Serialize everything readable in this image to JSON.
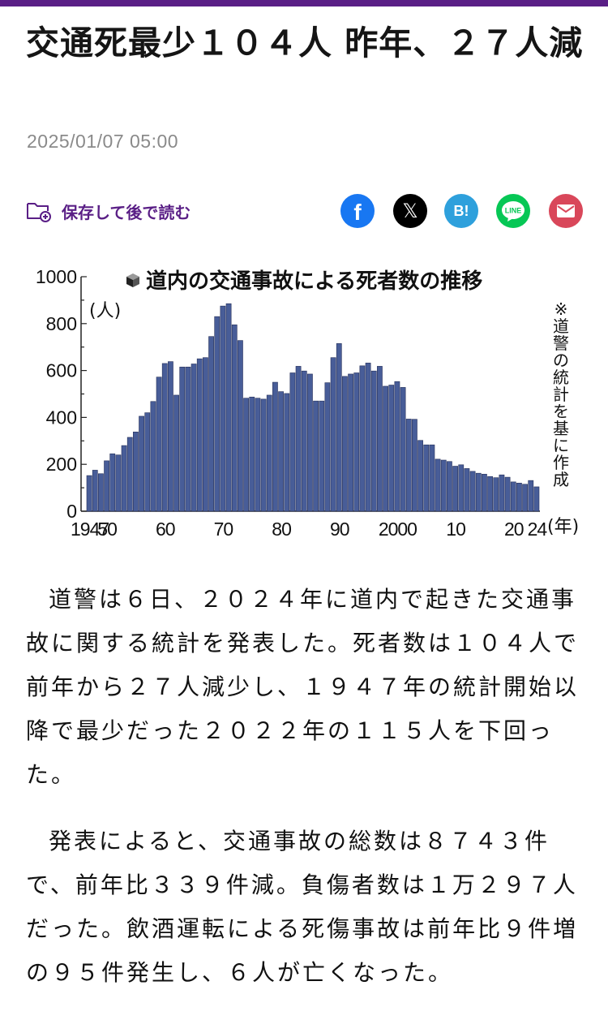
{
  "article": {
    "title": "交通死最少１０４人 昨年、２７人減",
    "date": "2025/01/07 05:00",
    "save_label": "保存して後で読む",
    "paragraphs": [
      "道警は６日、２０２４年に道内で起きた交通事故に関する統計を発表した。死者数は１０４人で前年から２７人減少し、１９４７年の統計開始以降で最少だった２０２２年の１１５人を下回った。",
      "発表によると、交通事故の総数は８７４３件で、前年比３３９件減。負傷者数は１万２９７人だった。飲酒運転による死傷事故は前年比９件増の９５件発生し、６人が亡くなった。"
    ]
  },
  "share": {
    "facebook_glyph": "f",
    "x_glyph": "𝕏",
    "hatena_glyph": "B!",
    "line_glyph": "LINE",
    "facebook_color": "#1877f2",
    "x_color": "#000000",
    "hatena_color": "#2ea0dc",
    "line_color": "#06c755",
    "mail_color": "#d9475a"
  },
  "chart_data": {
    "type": "bar",
    "title": "道内の交通事故による死者数の推移",
    "ylabel": "(人)",
    "xlabel": "(年)",
    "note": "※道警の統計を基に作成",
    "ylim": [
      0,
      1000
    ],
    "yticks": [
      0,
      200,
      400,
      600,
      800,
      1000
    ],
    "xtick_values": [
      1947,
      1950,
      1960,
      1970,
      1980,
      1990,
      2000,
      2010,
      2020,
      2024
    ],
    "xtick_labels": [
      "1947",
      "50",
      "60",
      "70",
      "80",
      "90",
      "2000",
      "10",
      "20",
      "24"
    ],
    "bar_color": "#485d98",
    "bar_edge_color": "#27315a",
    "x": [
      1947,
      1948,
      1949,
      1950,
      1951,
      1952,
      1953,
      1954,
      1955,
      1956,
      1957,
      1958,
      1959,
      1960,
      1961,
      1962,
      1963,
      1964,
      1965,
      1966,
      1967,
      1968,
      1969,
      1970,
      1971,
      1972,
      1973,
      1974,
      1975,
      1976,
      1977,
      1978,
      1979,
      1980,
      1981,
      1982,
      1983,
      1984,
      1985,
      1986,
      1987,
      1988,
      1989,
      1990,
      1991,
      1992,
      1993,
      1994,
      1995,
      1996,
      1997,
      1998,
      1999,
      2000,
      2001,
      2002,
      2003,
      2004,
      2005,
      2006,
      2007,
      2008,
      2009,
      2010,
      2011,
      2012,
      2013,
      2014,
      2015,
      2016,
      2017,
      2018,
      2019,
      2020,
      2021,
      2022,
      2023,
      2024
    ],
    "values": [
      152,
      175,
      160,
      215,
      245,
      240,
      280,
      315,
      338,
      405,
      420,
      468,
      572,
      630,
      638,
      495,
      615,
      615,
      628,
      650,
      655,
      745,
      830,
      875,
      885,
      795,
      728,
      482,
      487,
      482,
      478,
      495,
      550,
      510,
      502,
      590,
      618,
      598,
      585,
      470,
      470,
      548,
      655,
      715,
      575,
      585,
      590,
      620,
      632,
      598,
      618,
      533,
      538,
      553,
      528,
      393,
      392,
      302,
      283,
      283,
      222,
      218,
      212,
      192,
      198,
      182,
      170,
      162,
      158,
      148,
      143,
      155,
      145,
      125,
      120,
      115,
      131,
      104
    ]
  }
}
